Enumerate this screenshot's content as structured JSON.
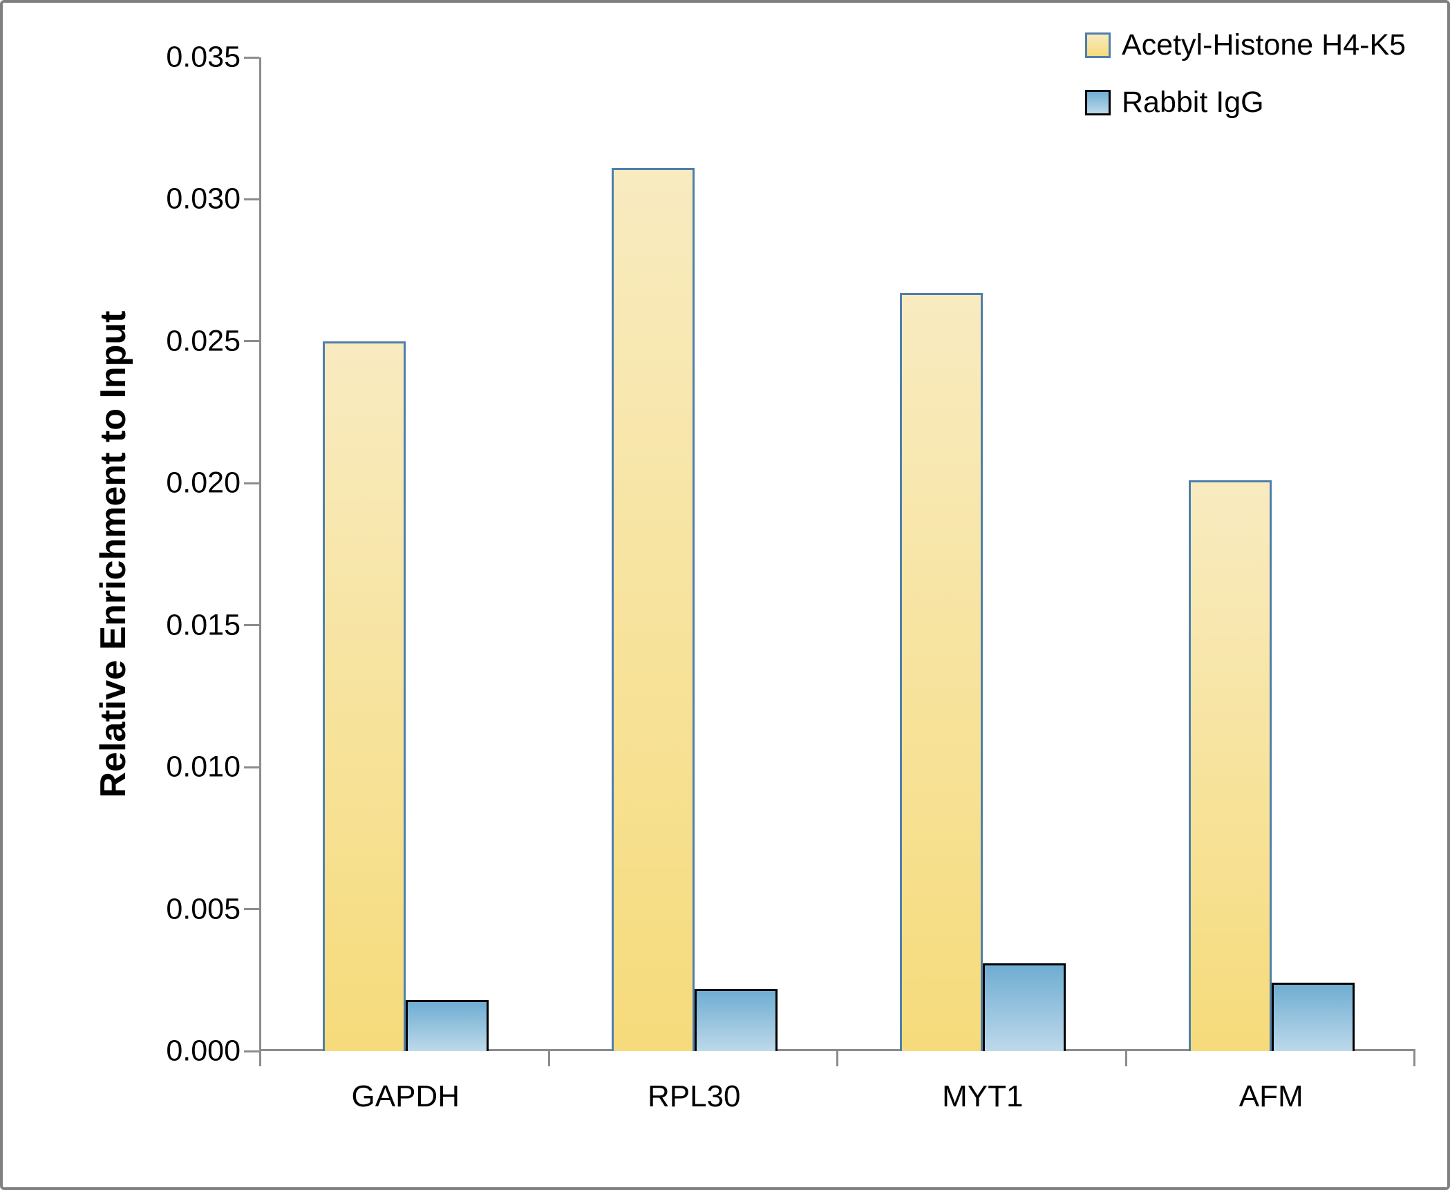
{
  "figure": {
    "background": "#FFFFFF",
    "border_color": "#808080",
    "axis_color": "#8C8C8C",
    "text_color": "#000000"
  },
  "chart_data": {
    "type": "bar",
    "title": "",
    "xlabel": "",
    "ylabel": "Relative Enrichment to Input",
    "categories": [
      "GAPDH",
      "RPL30",
      "MYT1",
      "AFM"
    ],
    "series": [
      {
        "name": "Acetyl-Histone H4-K5",
        "values": [
          0.025,
          0.0311,
          0.0267,
          0.0201
        ],
        "fill_top": "#F8EBC0",
        "fill_bottom": "#F6DB7B",
        "border_color": "#4E7FAC"
      },
      {
        "name": "Rabbit IgG",
        "values": [
          0.0018,
          0.0022,
          0.0031,
          0.0024
        ],
        "fill_top": "#6FADD2",
        "fill_bottom": "#BDD9EA",
        "border_color": "#000000"
      }
    ],
    "ylim": [
      0,
      0.035
    ],
    "ytick_step": 0.005,
    "ytick_decimals": 3,
    "grid": false,
    "legend_position": "top-right"
  }
}
